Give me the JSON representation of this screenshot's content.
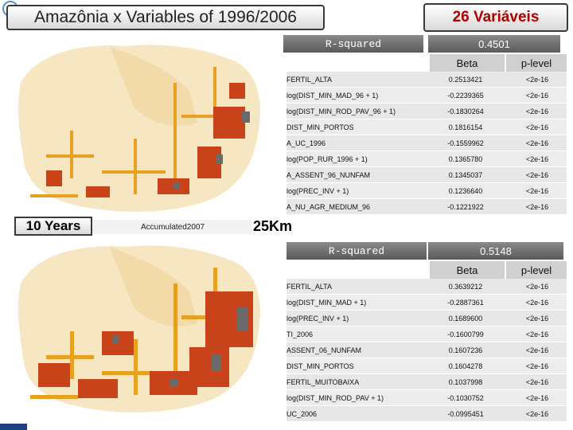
{
  "title": "Amazônia x Variables of 1996/2006",
  "var_count": "26 Variáveis",
  "years_label": "10 Years",
  "map_caption": "Accumulated2007",
  "km_label": "25Km",
  "colors": {
    "bar_gray": "#6e6e6e",
    "accent_red": "#b00000",
    "corner_blue": "#1f3f86"
  },
  "model1": {
    "r_label": "R-squared",
    "r_value": "0.4501",
    "beta_header": "Beta",
    "p_header": "p-level",
    "rows": [
      {
        "var": "FERTIL_ALTA",
        "beta": "0.2513421",
        "p": "<2e-16"
      },
      {
        "var": "log(DIST_MIN_MAD_96 + 1)",
        "beta": "-0.2239365",
        "p": "<2e-16"
      },
      {
        "var": "log(DIST_MIN_ROD_PAV_96 + 1)",
        "beta": "-0.1830264",
        "p": "<2e-16"
      },
      {
        "var": "DIST_MIN_PORTOS",
        "beta": "0.1816154",
        "p": "<2e-16"
      },
      {
        "var": "A_UC_1996",
        "beta": "-0.1559962",
        "p": "<2e-16"
      },
      {
        "var": "log(POP_RUR_1996 + 1)",
        "beta": "0.1365780",
        "p": "<2e-16"
      },
      {
        "var": "A_ASSENT_96_NUNFAM",
        "beta": "0.1345037",
        "p": "<2e-16"
      },
      {
        "var": "log(PREC_INV + 1)",
        "beta": "0.1236640",
        "p": "<2e-16"
      },
      {
        "var": "A_NU_AGR_MEDIUM_96",
        "beta": "-0.1221922",
        "p": "<2e-16"
      }
    ]
  },
  "model2": {
    "r_label": "R-squared",
    "r_value": "0.5148",
    "beta_header": "Beta",
    "p_header": "p-level",
    "rows": [
      {
        "var": "FERTIL_ALTA",
        "beta": "0.3639212",
        "p": "<2e-16"
      },
      {
        "var": "log(DIST_MIN_MAD + 1)",
        "beta": "-0.2887361",
        "p": "<2e-16"
      },
      {
        "var": "log(PREC_INV + 1)",
        "beta": "0.1689600",
        "p": "<2e-16"
      },
      {
        "var": "TI_2006",
        "beta": "-0.1600799",
        "p": "<2e-16"
      },
      {
        "var": "ASSENT_06_NUNFAM",
        "beta": "0.1607236",
        "p": "<2e-16"
      },
      {
        "var": "DIST_MIN_PORTOS",
        "beta": "0.1604278",
        "p": "<2e-16"
      },
      {
        "var": "FERTIL_MUITOBAIXA",
        "beta": "0.1037998",
        "p": "<2e-16"
      },
      {
        "var": "log(DIST_MIN_ROD_PAV + 1)",
        "beta": "-0.1030752",
        "p": "<2e-16"
      },
      {
        "var": "UC_2006",
        "beta": "-0.0995451",
        "p": "<2e-16"
      }
    ]
  }
}
